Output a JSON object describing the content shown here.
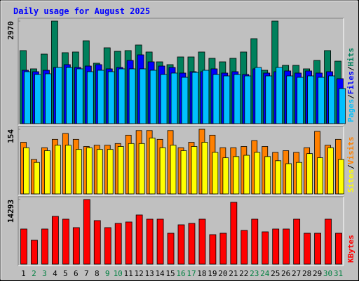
{
  "chart_data": {
    "type": "bar",
    "title": "Daily usage for August 2025",
    "categories": [
      "1",
      "2",
      "3",
      "4",
      "5",
      "6",
      "7",
      "8",
      "9",
      "10",
      "11",
      "12",
      "13",
      "14",
      "15",
      "16",
      "17",
      "18",
      "19",
      "20",
      "21",
      "22",
      "23",
      "24",
      "25",
      "26",
      "27",
      "28",
      "29",
      "30",
      "31"
    ],
    "category_colors": [
      "#000000",
      "#008040",
      "#008040",
      "#000000",
      "#000000",
      "#000000",
      "#000000",
      "#000000",
      "#008040",
      "#008040",
      "#000000",
      "#000000",
      "#000000",
      "#000000",
      "#000000",
      "#008040",
      "#008040",
      "#000000",
      "#000000",
      "#000000",
      "#000000",
      "#000000",
      "#008040",
      "#008040",
      "#000000",
      "#000000",
      "#000000",
      "#000000",
      "#000000",
      "#008040",
      "#008040"
    ],
    "legend_separator": "/",
    "panels": [
      {
        "ylim": [
          0,
          2970
        ],
        "yticks": [
          2970
        ],
        "series": [
          {
            "name": "Hits",
            "color": "#00805c",
            "values": [
              2116,
              1587,
              2014,
              2970,
              2055,
              2075,
              2400,
              1750,
              2197,
              2095,
              2116,
              2278,
              2075,
              1790,
              1709,
              1932,
              1932,
              2075,
              1892,
              1790,
              1892,
              2075,
              2461,
              1546,
              2970,
              1688,
              1688,
              1587,
              1831,
              2116,
              1810
            ]
          },
          {
            "name": "Files",
            "color": "#0000ff",
            "values": [
              1546,
              1505,
              1546,
              1627,
              1709,
              1627,
              1668,
              1709,
              1587,
              1627,
              1831,
              1993,
              1790,
              1668,
              1627,
              1465,
              1505,
              1505,
              1587,
              1465,
              1505,
              1424,
              1587,
              1465,
              1505,
              1526,
              1465,
              1526,
              1465,
              1505,
              1302
            ]
          },
          {
            "name": "Pages",
            "color": "#00c0ff",
            "values": [
              1505,
              1424,
              1444,
              1627,
              1627,
              1587,
              1505,
              1546,
              1505,
              1587,
              1587,
              1587,
              1546,
              1424,
              1465,
              1342,
              1485,
              1546,
              1424,
              1383,
              1424,
              1383,
              1627,
              1383,
              1627,
              1383,
              1342,
              1383,
              1342,
              1383,
              1017
            ]
          }
        ]
      },
      {
        "ylim": [
          0,
          154
        ],
        "yticks": [
          154
        ],
        "series": [
          {
            "name": "Visits",
            "color": "#ff8000",
            "values": [
              123,
              82,
              110,
              130,
              144,
              130,
              113,
              116,
              116,
              120,
              140,
              151,
              151,
              130,
              151,
              110,
              123,
              154,
              140,
              110,
              110,
              113,
              127,
              113,
              99,
              103,
              99,
              110,
              149,
              116,
              130
            ]
          },
          {
            "name": "Sites",
            "color": "#ffff00",
            "values": [
              110,
              75,
              103,
              116,
              116,
              106,
              110,
              106,
              106,
              113,
              120,
              120,
              133,
              110,
              116,
              103,
              113,
              123,
              99,
              86,
              89,
              92,
              99,
              89,
              79,
              72,
              75,
              96,
              86,
              110,
              82
            ]
          }
        ]
      },
      {
        "ylim": [
          0,
          14293
        ],
        "yticks": [
          14293
        ],
        "series": [
          {
            "name": "KBytes",
            "color": "#ff0000",
            "values": [
              7770,
              5284,
              7770,
              10567,
              9946,
              8081,
              14293,
              9635,
              8081,
              9013,
              9324,
              10878,
              9946,
              9946,
              6838,
              8702,
              9013,
              9946,
              6527,
              6838,
              13675,
              7459,
              9946,
              7148,
              7770,
              7770,
              9946,
              6838,
              6838,
              9946,
              6838
            ]
          }
        ]
      }
    ]
  }
}
